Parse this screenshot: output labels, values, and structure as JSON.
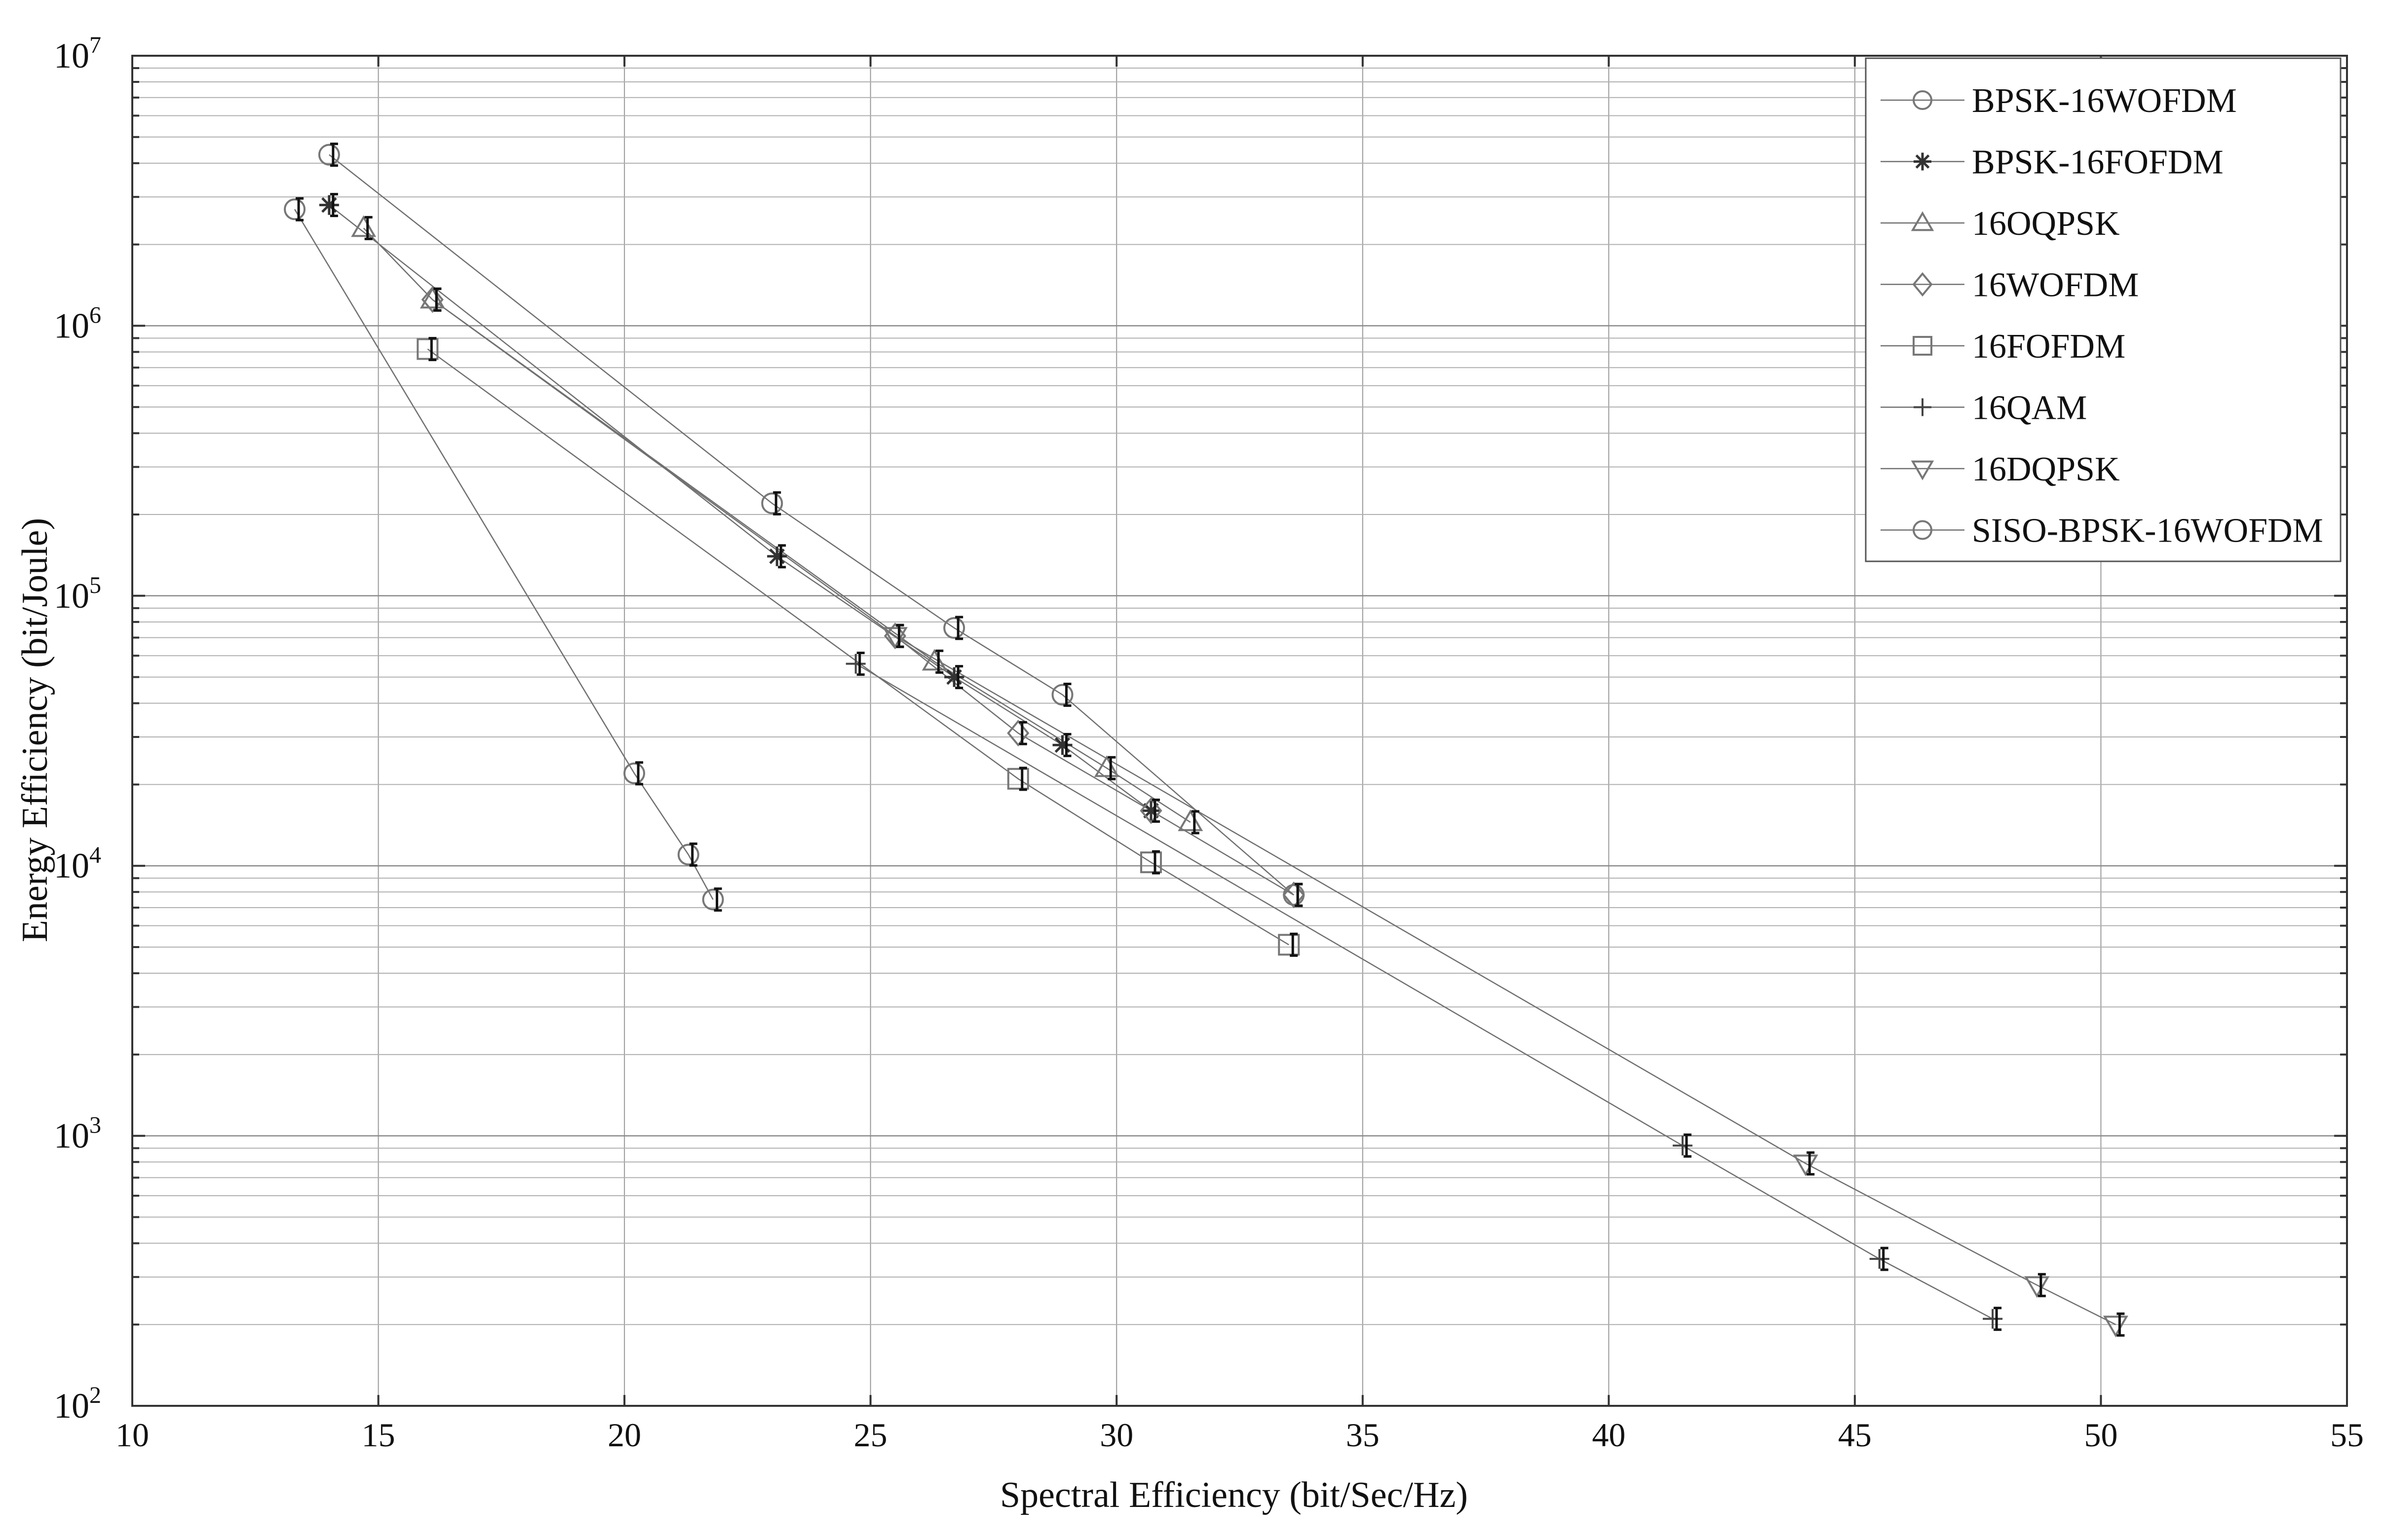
{
  "chart_data": {
    "type": "scatter",
    "title": "",
    "xlabel": "Spectral Efficiency (bit/Sec/Hz)",
    "ylabel": "Energy Efficiency (bit/Joule)",
    "xscale": "linear",
    "yscale": "log",
    "xlim": [
      10,
      55
    ],
    "ylim": [
      100,
      10000000
    ],
    "xticks": [
      "10",
      "15",
      "20",
      "25",
      "30",
      "35",
      "40",
      "45",
      "50",
      "55"
    ],
    "yticks": [
      {
        "base": "10",
        "exp": "2"
      },
      {
        "base": "10",
        "exp": "3"
      },
      {
        "base": "10",
        "exp": "4"
      },
      {
        "base": "10",
        "exp": "5"
      },
      {
        "base": "10",
        "exp": "6"
      },
      {
        "base": "10",
        "exp": "7"
      }
    ],
    "grid": true,
    "legend_position": "top-right",
    "series": [
      {
        "name": "BPSK-16WOFDM",
        "marker": "circle",
        "points": [
          [
            14,
            4300000
          ],
          [
            23,
            220000
          ],
          [
            26.7,
            76000
          ],
          [
            28.9,
            43000
          ],
          [
            33.6,
            7800
          ]
        ]
      },
      {
        "name": "BPSK-16FOFDM",
        "marker": "star",
        "points": [
          [
            14,
            2800000
          ],
          [
            23.1,
            140000
          ],
          [
            26.7,
            50000
          ],
          [
            28.9,
            28000
          ],
          [
            30.7,
            16000
          ]
        ]
      },
      {
        "name": "16OQPSK",
        "marker": "triangle-up",
        "points": [
          [
            14.7,
            2300000
          ],
          [
            16.1,
            1250000
          ],
          [
            26.3,
            57000
          ],
          [
            29.8,
            23000
          ],
          [
            31.5,
            14500
          ]
        ]
      },
      {
        "name": "16WOFDM",
        "marker": "diamond",
        "points": [
          [
            16.1,
            1250000
          ],
          [
            25.5,
            71000
          ],
          [
            28,
            31000
          ],
          [
            30.7,
            16000
          ],
          [
            33.6,
            7800
          ]
        ]
      },
      {
        "name": "16FOFDM",
        "marker": "square",
        "points": [
          [
            16,
            820000
          ],
          [
            28,
            21000
          ],
          [
            30.7,
            10300
          ],
          [
            33.5,
            5100
          ]
        ]
      },
      {
        "name": "16QAM",
        "marker": "plus",
        "points": [
          [
            24.7,
            56000
          ],
          [
            41.5,
            920
          ],
          [
            45.5,
            350
          ],
          [
            47.8,
            210
          ]
        ]
      },
      {
        "name": "16DQPSK",
        "marker": "triangle-down",
        "points": [
          [
            25.5,
            71000
          ],
          [
            44,
            790
          ],
          [
            48.7,
            280
          ],
          [
            50.3,
            200
          ]
        ]
      },
      {
        "name": "SISO-BPSK-16WOFDM",
        "marker": "circle",
        "points": [
          [
            13.3,
            2700000
          ],
          [
            20.2,
            22000
          ],
          [
            21.3,
            11000
          ],
          [
            21.8,
            7500
          ]
        ]
      }
    ]
  }
}
